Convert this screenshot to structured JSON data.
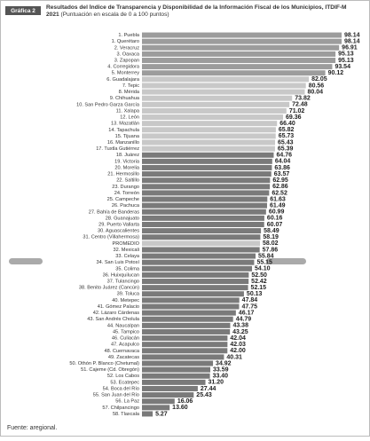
{
  "chart_data": {
    "type": "bar",
    "orientation": "horizontal",
    "badge": "Gráfica 2",
    "title": "Resultados del Índice de Transparencia y Disponibilidad de la Información Fiscal de los Municipios, ITDIF-M 2021",
    "subtitle": "(Puntuación en escala de 0 a 100 puntos)",
    "source": "Fuente: aregional.",
    "categories": [
      "1. Puebla",
      "1. Querétaro",
      "2. Veracruz",
      "3. Oaxaca",
      "3. Zapopan",
      "4. Corregidora",
      "5. Monterrey",
      "6. Guadalajara",
      "7. Tepic",
      "8. Mérida",
      "9. Chihuahua",
      "10. San Pedro Garza García",
      "11. Xalapa",
      "12. León",
      "13. Mazatlán",
      "14. Tapachula",
      "15. Tijuana",
      "16. Manzanillo",
      "17. Tuxtla Gutiérrez",
      "18. Juárez",
      "19. Victoria",
      "20. Morelia",
      "21. Hermosillo",
      "22. Saltillo",
      "23. Durango",
      "24. Torreón",
      "25. Campeche",
      "26. Pachuca",
      "27. Bahía de Banderas",
      "28. Guanajuato",
      "29. Puerto Vallarta",
      "30. Aguascalientes",
      "31. Centro (Villahermosa)",
      "PROMEDIO",
      "32. Mexicali",
      "33. Celaya",
      "34. San Luis Potosí",
      "35. Colima",
      "36. Huixquilucan",
      "37. Tulancingo",
      "38. Benito Juárez (Cancún)",
      "39. Toluca",
      "40. Metepec",
      "41. Gómez Palacio",
      "42. Lázaro Cárdenas",
      "43. San Andrés Cholula",
      "44. Naucalpan",
      "45. Tampico",
      "46. Culiacán",
      "47. Acapulco",
      "48. Cuernavaca",
      "49. Zacatecas",
      "50. Othón P. Blanco (Chetumal)",
      "51. Cajeme (Cd. Obregón)",
      "52. Los Cabos",
      "53. Ecatepec",
      "54. Boca del Río",
      "55. San Juan del Río",
      "56. La Paz",
      "57. Chilpancingo",
      "58. Tlaxcala"
    ],
    "values": [
      98.14,
      98.14,
      96.91,
      95.13,
      95.13,
      93.54,
      90.12,
      82.05,
      80.56,
      80.04,
      73.82,
      72.48,
      71.02,
      69.36,
      66.4,
      65.82,
      65.73,
      65.43,
      65.39,
      64.76,
      64.04,
      63.86,
      63.57,
      62.95,
      62.86,
      62.52,
      61.63,
      61.49,
      60.99,
      60.16,
      60.07,
      58.49,
      58.19,
      58.02,
      57.86,
      55.84,
      55.15,
      54.1,
      52.5,
      52.42,
      52.15,
      50.13,
      47.84,
      47.75,
      46.17,
      44.79,
      43.38,
      43.25,
      42.04,
      42.03,
      42.0,
      40.31,
      34.92,
      33.59,
      33.4,
      31.2,
      27.44,
      25.43,
      16.06,
      13.6,
      5.27
    ],
    "value_labels": [
      "98.14",
      "98.14",
      "96.91",
      "95.13",
      "95.13",
      "93.54",
      "90.12",
      "82.05",
      "80.56",
      "80.04",
      "73.82",
      "72.48",
      "71.02",
      "69.36",
      "66.40",
      "65.82",
      "65.73",
      "65.43",
      "65.39",
      "64.76",
      "64.04",
      "63.86",
      "63.57",
      "62.95",
      "62.86",
      "62.52",
      "61.63",
      "61.49",
      "60.99",
      "60.16",
      "60.07",
      "58.49",
      "58.19",
      "58.02",
      "57.86",
      "55.84",
      "55.15",
      "54.10",
      "52.50",
      "52.42",
      "52.15",
      "50.13",
      "47.84",
      "47.75",
      "46.17",
      "44.79",
      "43.38",
      "43.25",
      "42.04",
      "42.03",
      "42.00",
      "40.31",
      "34.92",
      "33.59",
      "33.40",
      "31.20",
      "27.44",
      "25.43",
      "16.06",
      "13.60",
      "5.27"
    ],
    "colors": [
      "#9c9c9c",
      "#9c9c9c",
      "#9c9c9c",
      "#9c9c9c",
      "#9c9c9c",
      "#9c9c9c",
      "#9c9c9c",
      "#c8c8c8",
      "#c8c8c8",
      "#c8c8c8",
      "#c8c8c8",
      "#c8c8c8",
      "#c8c8c8",
      "#c8c8c8",
      "#c8c8c8",
      "#c8c8c8",
      "#c8c8c8",
      "#c8c8c8",
      "#c8c8c8",
      "#7a7a7a",
      "#7a7a7a",
      "#7a7a7a",
      "#7a7a7a",
      "#7a7a7a",
      "#7a7a7a",
      "#7a7a7a",
      "#7a7a7a",
      "#7a7a7a",
      "#7a7a7a",
      "#7a7a7a",
      "#7a7a7a",
      "#7a7a7a",
      "#7a7a7a",
      "#c8c8c8",
      "#7a7a7a",
      "#7a7a7a",
      "#7a7a7a",
      "#7a7a7a",
      "#7a7a7a",
      "#7a7a7a",
      "#7a7a7a",
      "#7a7a7a",
      "#7a7a7a",
      "#7a7a7a",
      "#7a7a7a",
      "#7a7a7a",
      "#7a7a7a",
      "#7a7a7a",
      "#7a7a7a",
      "#7a7a7a",
      "#7a7a7a",
      "#7a7a7a",
      "#7a7a7a",
      "#7a7a7a",
      "#7a7a7a",
      "#7a7a7a",
      "#7a7a7a",
      "#7a7a7a",
      "#7a7a7a",
      "#7a7a7a",
      "#7a7a7a"
    ]
  }
}
